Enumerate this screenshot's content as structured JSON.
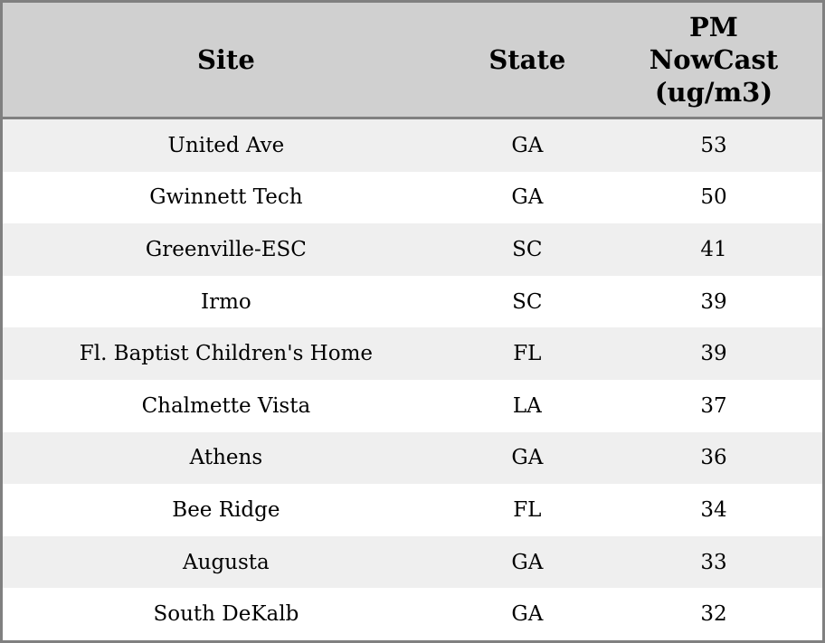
{
  "chart_data": {
    "type": "table",
    "columns": [
      "Site",
      "State",
      "PM NowCast (ug/m3)"
    ],
    "rows": [
      [
        "United Ave",
        "GA",
        53
      ],
      [
        "Gwinnett Tech",
        "GA",
        50
      ],
      [
        "Greenville-ESC",
        "SC",
        41
      ],
      [
        "Irmo",
        "SC",
        39
      ],
      [
        "Fl. Baptist Children's Home",
        "FL",
        39
      ],
      [
        "Chalmette Vista",
        "LA",
        37
      ],
      [
        "Athens",
        "GA",
        36
      ],
      [
        "Bee Ridge",
        "FL",
        34
      ],
      [
        "Augusta",
        "GA",
        33
      ],
      [
        "South DeKalb",
        "GA",
        32
      ]
    ]
  },
  "display": {
    "pm_header_wrapped": "PM\nNowCast\n(ug/m3)"
  },
  "colors": {
    "header_bg": "#d0d0d0",
    "row_stripe_bg": "#efefef",
    "row_bg": "#ffffff",
    "border": "#808080",
    "text": "#000000"
  }
}
